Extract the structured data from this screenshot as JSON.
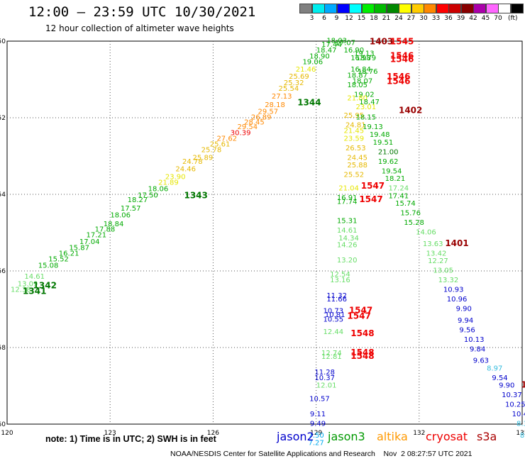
{
  "header": {
    "title": "12:00 – 23:59 UTC 10/30/2021",
    "subtitle": "12 hour collection of altimeter wave heights",
    "unit_label": "(ft)"
  },
  "color_scale": [
    {
      "label": "",
      "color": "#808080"
    },
    {
      "label": "3",
      "color": "#00eeee"
    },
    {
      "label": "6",
      "color": "#00aaff"
    },
    {
      "label": "9",
      "color": "#0000ff"
    },
    {
      "label": "12",
      "color": "#00ffff"
    },
    {
      "label": "15",
      "color": "#00ee00"
    },
    {
      "label": "18",
      "color": "#00bb00"
    },
    {
      "label": "21",
      "color": "#008800"
    },
    {
      "label": "24",
      "color": "#ffff00"
    },
    {
      "label": "27",
      "color": "#ffcc00"
    },
    {
      "label": "30",
      "color": "#ff8800"
    },
    {
      "label": "33",
      "color": "#ff0000"
    },
    {
      "label": "36",
      "color": "#cc0000"
    },
    {
      "label": "39",
      "color": "#880000"
    },
    {
      "label": "42",
      "color": "#aa00aa"
    },
    {
      "label": "45",
      "color": "#ff66ff"
    },
    {
      "label": "70",
      "color": "#ffffff"
    },
    {
      "label": "",
      "color": "#000000"
    }
  ],
  "footer": {
    "note": "note:  1) Time is in UTC;  2) SWH is in feet",
    "credit": "NOAA/NESDIS Center for Satellite Applications and Research    Nov  2 08:27:57 UTC 2021",
    "satellites": [
      {
        "name": "jason2",
        "color": "#0000cc"
      },
      {
        "name": "jason3",
        "color": "#009900"
      },
      {
        "name": "altika",
        "color": "#ff9900"
      },
      {
        "name": "cryosat",
        "color": "#ee0000"
      },
      {
        "name": "s3a",
        "color": "#aa0000"
      }
    ]
  },
  "chart_data": {
    "type": "scatter",
    "xlim": [
      120,
      135
    ],
    "ylim": [
      -60,
      -50
    ],
    "xticks": [
      120,
      123,
      126,
      129,
      132,
      135
    ],
    "yticks": [
      -50,
      -52,
      -54,
      -56,
      -58,
      -60
    ],
    "grid": "dotted",
    "colors": {
      "lgreen": "#66dd66",
      "green": "#00aa00",
      "dgreen": "#007700",
      "yellow": "#e6e600",
      "gold": "#e6b800",
      "orange": "#ff8800",
      "red": "#ee0000",
      "dred": "#990000",
      "blue": "#0000cc",
      "cyan": "#00aaee",
      "sky": "#33bbdd"
    },
    "points": [
      {
        "x": 120.4,
        "y": -56.55,
        "t": "12.38",
        "c": "lgreen"
      },
      {
        "x": 120.6,
        "y": -56.4,
        "t": "13.09",
        "c": "lgreen"
      },
      {
        "x": 120.8,
        "y": -56.2,
        "t": "14.61",
        "c": "lgreen"
      },
      {
        "x": 121.2,
        "y": -55.92,
        "t": "15.08",
        "c": "green"
      },
      {
        "x": 121.5,
        "y": -55.75,
        "t": "15.52",
        "c": "green"
      },
      {
        "x": 121.8,
        "y": -55.6,
        "t": "16.21",
        "c": "green"
      },
      {
        "x": 122.1,
        "y": -55.45,
        "t": "15.87",
        "c": "green"
      },
      {
        "x": 122.4,
        "y": -55.3,
        "t": "17.04",
        "c": "green"
      },
      {
        "x": 122.6,
        "y": -55.12,
        "t": "17.21",
        "c": "green"
      },
      {
        "x": 122.85,
        "y": -54.97,
        "t": "17.88",
        "c": "green"
      },
      {
        "x": 123.1,
        "y": -54.83,
        "t": "18.84",
        "c": "green"
      },
      {
        "x": 123.3,
        "y": -54.6,
        "t": "18.06",
        "c": "green"
      },
      {
        "x": 123.6,
        "y": -54.43,
        "t": "17.57",
        "c": "green"
      },
      {
        "x": 123.8,
        "y": -54.2,
        "t": "18.27",
        "c": "green"
      },
      {
        "x": 124.1,
        "y": -54.08,
        "t": "17.50",
        "c": "green"
      },
      {
        "x": 124.4,
        "y": -53.92,
        "t": "18.06",
        "c": "green"
      },
      {
        "x": 124.7,
        "y": -53.75,
        "t": "21.89",
        "c": "yellow"
      },
      {
        "x": 124.9,
        "y": -53.6,
        "t": "23.90",
        "c": "yellow"
      },
      {
        "x": 125.2,
        "y": -53.4,
        "t": "24.46",
        "c": "gold"
      },
      {
        "x": 125.4,
        "y": -53.2,
        "t": "24.78",
        "c": "gold"
      },
      {
        "x": 125.7,
        "y": -53.1,
        "t": "25.89",
        "c": "gold"
      },
      {
        "x": 125.95,
        "y": -52.9,
        "t": "25.78",
        "c": "gold"
      },
      {
        "x": 126.2,
        "y": -52.75,
        "t": "25.61",
        "c": "gold"
      },
      {
        "x": 126.4,
        "y": -52.6,
        "t": "27.62",
        "c": "orange"
      },
      {
        "x": 126.8,
        "y": -52.45,
        "t": "30.39",
        "c": "red"
      },
      {
        "x": 127.0,
        "y": -52.3,
        "t": "29.54",
        "c": "orange"
      },
      {
        "x": 127.2,
        "y": -52.18,
        "t": "28.45",
        "c": "orange"
      },
      {
        "x": 127.4,
        "y": -52.05,
        "t": "26.89",
        "c": "orange"
      },
      {
        "x": 127.6,
        "y": -51.9,
        "t": "29.57",
        "c": "orange"
      },
      {
        "x": 127.8,
        "y": -51.72,
        "t": "28.18",
        "c": "orange"
      },
      {
        "x": 128.0,
        "y": -51.5,
        "t": "27.13",
        "c": "orange"
      },
      {
        "x": 128.2,
        "y": -51.3,
        "t": "25.54",
        "c": "gold"
      },
      {
        "x": 128.35,
        "y": -51.15,
        "t": "25.32",
        "c": "gold"
      },
      {
        "x": 128.5,
        "y": -50.98,
        "t": "25.69",
        "c": "gold"
      },
      {
        "x": 128.7,
        "y": -50.8,
        "t": "21.46",
        "c": "yellow"
      },
      {
        "x": 128.9,
        "y": -50.6,
        "t": "19.06",
        "c": "green"
      },
      {
        "x": 129.1,
        "y": -50.45,
        "t": "18.90",
        "c": "green"
      },
      {
        "x": 129.3,
        "y": -50.3,
        "t": "18.47",
        "c": "green"
      },
      {
        "x": 129.45,
        "y": -50.15,
        "t": "17.44",
        "c": "green"
      },
      {
        "x": 129.6,
        "y": -50.05,
        "t": "18.03",
        "c": "green"
      },
      {
        "x": 129.85,
        "y": -50.1,
        "t": "17.07",
        "c": "green"
      },
      {
        "x": 130.1,
        "y": -50.3,
        "t": "16.90",
        "c": "green"
      },
      {
        "x": 130.4,
        "y": -50.38,
        "t": "19.13",
        "c": "green"
      },
      {
        "x": 130.3,
        "y": -50.5,
        "t": "16.98",
        "c": "green"
      },
      {
        "x": 130.45,
        "y": -50.5,
        "t": "18.79",
        "c": "green"
      },
      {
        "x": 130.3,
        "y": -50.8,
        "t": "16.84",
        "c": "green"
      },
      {
        "x": 130.5,
        "y": -50.85,
        "t": "18.76",
        "c": "green"
      },
      {
        "x": 130.2,
        "y": -50.95,
        "t": "18.87",
        "c": "green"
      },
      {
        "x": 130.35,
        "y": -51.1,
        "t": "18.07",
        "c": "green"
      },
      {
        "x": 130.2,
        "y": -51.2,
        "t": "18.05",
        "c": "green"
      },
      {
        "x": 130.4,
        "y": -51.45,
        "t": "19.02",
        "c": "green"
      },
      {
        "x": 130.2,
        "y": -51.55,
        "t": "21.80",
        "c": "yellow"
      },
      {
        "x": 130.55,
        "y": -51.65,
        "t": "18.47",
        "c": "green"
      },
      {
        "x": 130.45,
        "y": -51.78,
        "t": "23.01",
        "c": "yellow"
      },
      {
        "x": 130.1,
        "y": -52.0,
        "t": "25.95",
        "c": "gold"
      },
      {
        "x": 130.45,
        "y": -52.05,
        "t": "18.15",
        "c": "green"
      },
      {
        "x": 130.15,
        "y": -52.25,
        "t": "24.81",
        "c": "gold"
      },
      {
        "x": 130.65,
        "y": -52.3,
        "t": "19.13",
        "c": "green"
      },
      {
        "x": 130.1,
        "y": -52.4,
        "t": "21.45",
        "c": "yellow"
      },
      {
        "x": 130.85,
        "y": -52.5,
        "t": "19.48",
        "c": "green"
      },
      {
        "x": 130.1,
        "y": -52.6,
        "t": "23.59",
        "c": "yellow"
      },
      {
        "x": 130.95,
        "y": -52.7,
        "t": "19.51",
        "c": "green"
      },
      {
        "x": 130.15,
        "y": -52.85,
        "t": "26.53",
        "c": "gold"
      },
      {
        "x": 131.1,
        "y": -52.95,
        "t": "21.00",
        "c": "dgreen"
      },
      {
        "x": 130.2,
        "y": -53.1,
        "t": "24.45",
        "c": "gold"
      },
      {
        "x": 131.1,
        "y": -53.2,
        "t": "19.62",
        "c": "green"
      },
      {
        "x": 130.2,
        "y": -53.3,
        "t": "25.88",
        "c": "gold"
      },
      {
        "x": 131.2,
        "y": -53.45,
        "t": "19.54",
        "c": "green"
      },
      {
        "x": 130.1,
        "y": -53.55,
        "t": "25.52",
        "c": "gold"
      },
      {
        "x": 131.3,
        "y": -53.65,
        "t": "18.21",
        "c": "green"
      },
      {
        "x": 129.95,
        "y": -53.9,
        "t": "21.04",
        "c": "yellow"
      },
      {
        "x": 131.4,
        "y": -53.9,
        "t": "17.24",
        "c": "lgreen"
      },
      {
        "x": 129.9,
        "y": -54.15,
        "t": "16.91",
        "c": "green"
      },
      {
        "x": 129.9,
        "y": -54.25,
        "t": "17.74",
        "c": "green"
      },
      {
        "x": 131.4,
        "y": -54.1,
        "t": "17.41",
        "c": "green"
      },
      {
        "x": 131.6,
        "y": -54.3,
        "t": "15.74",
        "c": "green"
      },
      {
        "x": 129.9,
        "y": -54.75,
        "t": "15.31",
        "c": "green"
      },
      {
        "x": 131.75,
        "y": -54.55,
        "t": "15.76",
        "c": "green"
      },
      {
        "x": 131.85,
        "y": -54.8,
        "t": "15.28",
        "c": "green"
      },
      {
        "x": 129.9,
        "y": -55.0,
        "t": "14.61",
        "c": "lgreen"
      },
      {
        "x": 129.95,
        "y": -55.2,
        "t": "14.34",
        "c": "lgreen"
      },
      {
        "x": 132.2,
        "y": -55.05,
        "t": "14.06",
        "c": "lgreen"
      },
      {
        "x": 129.9,
        "y": -55.38,
        "t": "14.26",
        "c": "lgreen"
      },
      {
        "x": 132.4,
        "y": -55.35,
        "t": "13.63",
        "c": "lgreen"
      },
      {
        "x": 132.5,
        "y": -55.6,
        "t": "13.42",
        "c": "lgreen"
      },
      {
        "x": 129.9,
        "y": -55.78,
        "t": "13.20",
        "c": "lgreen"
      },
      {
        "x": 132.55,
        "y": -55.8,
        "t": "12.27",
        "c": "lgreen"
      },
      {
        "x": 132.7,
        "y": -56.05,
        "t": "13.05",
        "c": "lgreen"
      },
      {
        "x": 129.7,
        "y": -56.15,
        "t": "12.54",
        "c": "lgreen"
      },
      {
        "x": 129.7,
        "y": -56.3,
        "t": "13.16",
        "c": "lgreen"
      },
      {
        "x": 132.85,
        "y": -56.3,
        "t": "13.32",
        "c": "lgreen"
      },
      {
        "x": 133.0,
        "y": -56.55,
        "t": "10.93",
        "c": "blue"
      },
      {
        "x": 129.6,
        "y": -56.7,
        "t": "11.32",
        "c": "blue"
      },
      {
        "x": 129.6,
        "y": -56.8,
        "t": "11.66",
        "c": "blue"
      },
      {
        "x": 133.1,
        "y": -56.8,
        "t": "10.96",
        "c": "blue"
      },
      {
        "x": 133.3,
        "y": -57.05,
        "t": "9.90",
        "c": "blue"
      },
      {
        "x": 129.5,
        "y": -57.1,
        "t": "10.73",
        "c": "blue"
      },
      {
        "x": 129.55,
        "y": -57.2,
        "t": "10.81",
        "c": "blue"
      },
      {
        "x": 129.5,
        "y": -57.32,
        "t": "10.55",
        "c": "blue"
      },
      {
        "x": 133.35,
        "y": -57.35,
        "t": "9.94",
        "c": "blue"
      },
      {
        "x": 133.4,
        "y": -57.6,
        "t": "9.56",
        "c": "blue"
      },
      {
        "x": 129.5,
        "y": -57.65,
        "t": "12.44",
        "c": "lgreen"
      },
      {
        "x": 133.6,
        "y": -57.85,
        "t": "10.13",
        "c": "blue"
      },
      {
        "x": 133.7,
        "y": -58.1,
        "t": "9.84",
        "c": "blue"
      },
      {
        "x": 129.45,
        "y": -58.2,
        "t": "12.74",
        "c": "lgreen"
      },
      {
        "x": 129.45,
        "y": -58.3,
        "t": "12.81",
        "c": "lgreen"
      },
      {
        "x": 133.8,
        "y": -58.4,
        "t": "9.63",
        "c": "blue"
      },
      {
        "x": 134.2,
        "y": -58.6,
        "t": "8.97",
        "c": "sky"
      },
      {
        "x": 129.25,
        "y": -58.7,
        "t": "11.28",
        "c": "blue"
      },
      {
        "x": 129.25,
        "y": -58.85,
        "t": "10.37",
        "c": "blue"
      },
      {
        "x": 134.35,
        "y": -58.85,
        "t": "9.54",
        "c": "blue"
      },
      {
        "x": 129.3,
        "y": -59.05,
        "t": "12.01",
        "c": "lgreen"
      },
      {
        "x": 134.55,
        "y": -59.05,
        "t": "9.90",
        "c": "blue"
      },
      {
        "x": 134.7,
        "y": -59.3,
        "t": "10.37",
        "c": "blue"
      },
      {
        "x": 129.1,
        "y": -59.4,
        "t": "10.57",
        "c": "blue"
      },
      {
        "x": 134.8,
        "y": -59.55,
        "t": "10.25",
        "c": "blue"
      },
      {
        "x": 129.05,
        "y": -59.8,
        "t": "9.11",
        "c": "blue"
      },
      {
        "x": 135.0,
        "y": -59.8,
        "t": "10.45",
        "c": "blue"
      },
      {
        "x": 129.05,
        "y": -60.05,
        "t": "9.49",
        "c": "blue"
      },
      {
        "x": 135.0,
        "y": -60.05,
        "t": "8.3",
        "c": "sky"
      },
      {
        "x": 129.0,
        "y": -60.35,
        "t": "7.50",
        "c": "cyan"
      },
      {
        "x": 135.0,
        "y": -60.35,
        "t": "8",
        "c": "sky"
      },
      {
        "x": 129.0,
        "y": -60.55,
        "t": "7.27",
        "c": "cyan"
      }
    ],
    "track_labels": [
      {
        "x": 120.8,
        "y": -56.6,
        "t": "1341",
        "c": "dgreen"
      },
      {
        "x": 121.1,
        "y": -56.45,
        "t": "1342",
        "c": "dgreen"
      },
      {
        "x": 125.5,
        "y": -54.1,
        "t": "1343",
        "c": "dgreen"
      },
      {
        "x": 128.8,
        "y": -51.68,
        "t": "1344",
        "c": "dgreen"
      },
      {
        "x": 130.9,
        "y": -50.08,
        "t": "1403",
        "c": "dred"
      },
      {
        "x": 131.5,
        "y": -50.08,
        "t": "1545",
        "c": "red"
      },
      {
        "x": 131.5,
        "y": -50.45,
        "t": "1546",
        "c": "red"
      },
      {
        "x": 131.5,
        "y": -50.55,
        "t": "1546",
        "c": "red"
      },
      {
        "x": 131.4,
        "y": -51.0,
        "t": "1546",
        "c": "red"
      },
      {
        "x": 131.4,
        "y": -51.12,
        "t": "1546",
        "c": "red"
      },
      {
        "x": 131.75,
        "y": -51.88,
        "t": "1402",
        "c": "dred"
      },
      {
        "x": 130.65,
        "y": -53.85,
        "t": "1547",
        "c": "red"
      },
      {
        "x": 130.6,
        "y": -54.2,
        "t": "1547",
        "c": "red"
      },
      {
        "x": 133.1,
        "y": -55.35,
        "t": "1401",
        "c": "dred"
      },
      {
        "x": 130.3,
        "y": -57.1,
        "t": "1547",
        "c": "red"
      },
      {
        "x": 130.25,
        "y": -57.25,
        "t": "1547",
        "c": "red"
      },
      {
        "x": 130.35,
        "y": -57.7,
        "t": "1548",
        "c": "red"
      },
      {
        "x": 130.35,
        "y": -58.2,
        "t": "1548",
        "c": "red"
      },
      {
        "x": 130.35,
        "y": -58.3,
        "t": "1548",
        "c": "red"
      },
      {
        "x": 135.05,
        "y": -59.05,
        "t": "1",
        "c": "dred"
      }
    ]
  }
}
